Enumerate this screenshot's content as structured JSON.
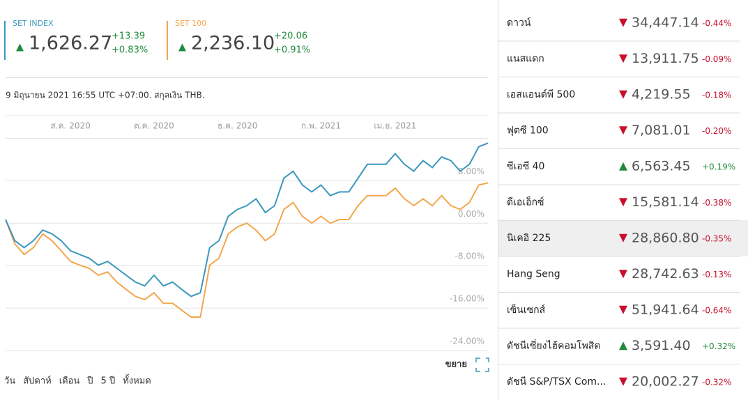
{
  "indices": [
    {
      "name": "SET INDEX",
      "value": "1,626.27",
      "change": "+13.39",
      "change_pct": "+0.83%",
      "direction": "up"
    },
    {
      "name": "SET 100",
      "value": "2,236.10",
      "change": "+20.06",
      "change_pct": "+0.91%",
      "direction": "up"
    }
  ],
  "timestamp": "9 มิถุนายน 2021 16:55 UTC +07:00. สกุลเงิน THB.",
  "chart_data": {
    "type": "line",
    "categories": [
      null,
      null,
      null,
      null,
      null,
      null,
      null,
      "ส.ค. 2020",
      null,
      null,
      null,
      null,
      null,
      null,
      null,
      null,
      "ต.ค. 2020",
      null,
      null,
      null,
      null,
      null,
      null,
      null,
      null,
      "ธ.ค. 2020",
      null,
      null,
      null,
      null,
      null,
      null,
      null,
      null,
      "ก.พ. 2021",
      null,
      null,
      null,
      null,
      null,
      null,
      null,
      "เม.ย. 2021",
      null,
      null,
      null,
      null,
      null,
      null,
      null,
      null,
      null,
      null
    ],
    "series": [
      {
        "name": "SET INDEX",
        "color": "#3b97bd",
        "values": [
          0.7,
          -3.3,
          -4.6,
          -3.3,
          -1.3,
          -2.0,
          -3.3,
          -5.2,
          -5.9,
          -6.6,
          -7.9,
          -7.2,
          -8.5,
          -9.8,
          -11.1,
          -11.8,
          -9.8,
          -11.8,
          -11.1,
          -12.5,
          -13.8,
          -13.1,
          -4.6,
          -3.3,
          1.3,
          2.6,
          3.3,
          4.6,
          2.0,
          3.3,
          8.5,
          9.8,
          7.2,
          5.9,
          7.2,
          5.2,
          5.9,
          5.9,
          8.5,
          11.1,
          11.1,
          11.1,
          13.1,
          11.1,
          9.8,
          11.8,
          10.5,
          12.5,
          11.8,
          9.8,
          11.1,
          14.4,
          15.1
        ]
      },
      {
        "name": "SET 100",
        "color": "#f4a64c",
        "values": [
          0.7,
          -3.9,
          -5.9,
          -4.6,
          -2.0,
          -3.3,
          -5.2,
          -7.2,
          -7.9,
          -8.5,
          -9.8,
          -9.2,
          -11.1,
          -12.5,
          -13.8,
          -14.4,
          -13.1,
          -15.1,
          -15.1,
          -16.4,
          -17.7,
          -17.7,
          -7.9,
          -6.6,
          -2.0,
          -0.7,
          0.0,
          -1.3,
          -3.3,
          -2.0,
          2.6,
          3.9,
          1.3,
          0.0,
          1.3,
          0.0,
          0.7,
          0.7,
          3.3,
          5.2,
          5.2,
          5.2,
          6.6,
          4.6,
          3.3,
          4.6,
          3.3,
          5.2,
          3.3,
          2.6,
          3.9,
          7.2,
          7.6
        ]
      }
    ],
    "ylim": [
      -24,
      16
    ],
    "yticks": [
      {
        "value": 8,
        "label": "8.00%"
      },
      {
        "value": 0,
        "label": "0.00%"
      },
      {
        "value": -8,
        "label": "-8.00%"
      },
      {
        "value": -16,
        "label": "-16.00%"
      },
      {
        "value": -24,
        "label": "-24.00%"
      }
    ],
    "grid": true
  },
  "expand": "ขยาย",
  "ranges": [
    "วัน",
    "สัปดาห์",
    "เดือน",
    "ปี",
    "5 ปี",
    "ทั้งหมด"
  ],
  "markets": [
    {
      "name": "ดาวน์",
      "value": "34,447.14",
      "change": "-0.44%",
      "direction": "down"
    },
    {
      "name": "แนสแดก",
      "value": "13,911.75",
      "change": "-0.09%",
      "direction": "down"
    },
    {
      "name": "เอสแอนด์พี 500",
      "value": "4,219.55",
      "change": "-0.18%",
      "direction": "down"
    },
    {
      "name": "ฟุตซี 100",
      "value": "7,081.01",
      "change": "-0.20%",
      "direction": "down"
    },
    {
      "name": "ซีเอซี 40",
      "value": "6,563.45",
      "change": "+0.19%",
      "direction": "up"
    },
    {
      "name": "ดีเอเอ็กซ์",
      "value": "15,581.14",
      "change": "-0.38%",
      "direction": "down"
    },
    {
      "name": "นิเคอิ 225",
      "value": "28,860.80",
      "change": "-0.35%",
      "direction": "down",
      "highlighted": true
    },
    {
      "name": "Hang Seng",
      "value": "28,742.63",
      "change": "-0.13%",
      "direction": "down"
    },
    {
      "name": "เซ็นเซกส์",
      "value": "51,941.64",
      "change": "-0.64%",
      "direction": "down"
    },
    {
      "name": "ดัชนีเซี่ยงไฮ้คอมโพสิต",
      "value": "3,591.40",
      "change": "+0.32%",
      "direction": "up"
    },
    {
      "name": "ดัชนี S&P/TSX Com...",
      "value": "20,002.27",
      "change": "-0.32%",
      "direction": "down"
    }
  ]
}
